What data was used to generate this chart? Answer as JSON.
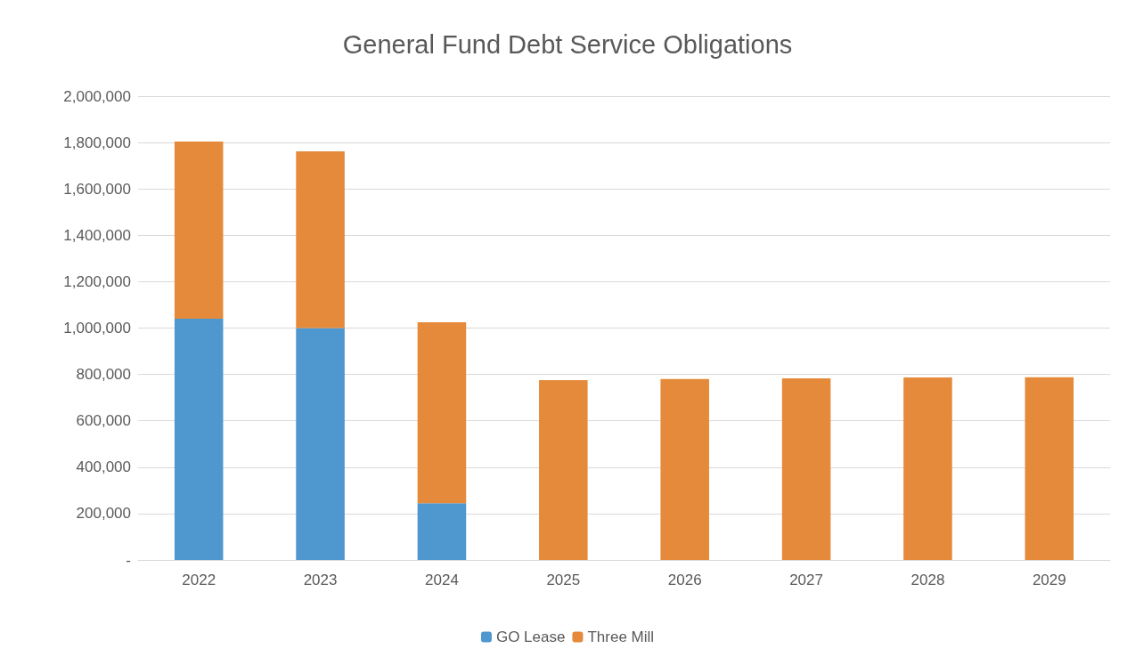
{
  "chart_data": {
    "type": "bar",
    "title": "General Fund Debt Service Obligations",
    "stacked": true,
    "categories": [
      "2022",
      "2023",
      "2024",
      "2025",
      "2026",
      "2027",
      "2028",
      "2029"
    ],
    "series": [
      {
        "name": "GO Lease",
        "color": "#4e97cf",
        "values": [
          1040000,
          1000000,
          245000,
          0,
          0,
          0,
          0,
          0
        ]
      },
      {
        "name": "Three Mill",
        "color": "#e58a3a",
        "values": [
          764000,
          762000,
          780000,
          775000,
          780000,
          783000,
          787000,
          788000
        ]
      }
    ],
    "ylim": [
      0,
      2000000
    ],
    "yticks": [
      {
        "value": 0,
        "label": "-"
      },
      {
        "value": 200000,
        "label": "200,000"
      },
      {
        "value": 400000,
        "label": "400,000"
      },
      {
        "value": 600000,
        "label": "600,000"
      },
      {
        "value": 800000,
        "label": "800,000"
      },
      {
        "value": 1000000,
        "label": "1,000,000"
      },
      {
        "value": 1200000,
        "label": "1,200,000"
      },
      {
        "value": 1400000,
        "label": "1,400,000"
      },
      {
        "value": 1600000,
        "label": "1,600,000"
      },
      {
        "value": 1800000,
        "label": "1,800,000"
      },
      {
        "value": 2000000,
        "label": "2,000,000"
      }
    ],
    "grid": "y",
    "legend": "bottom"
  }
}
